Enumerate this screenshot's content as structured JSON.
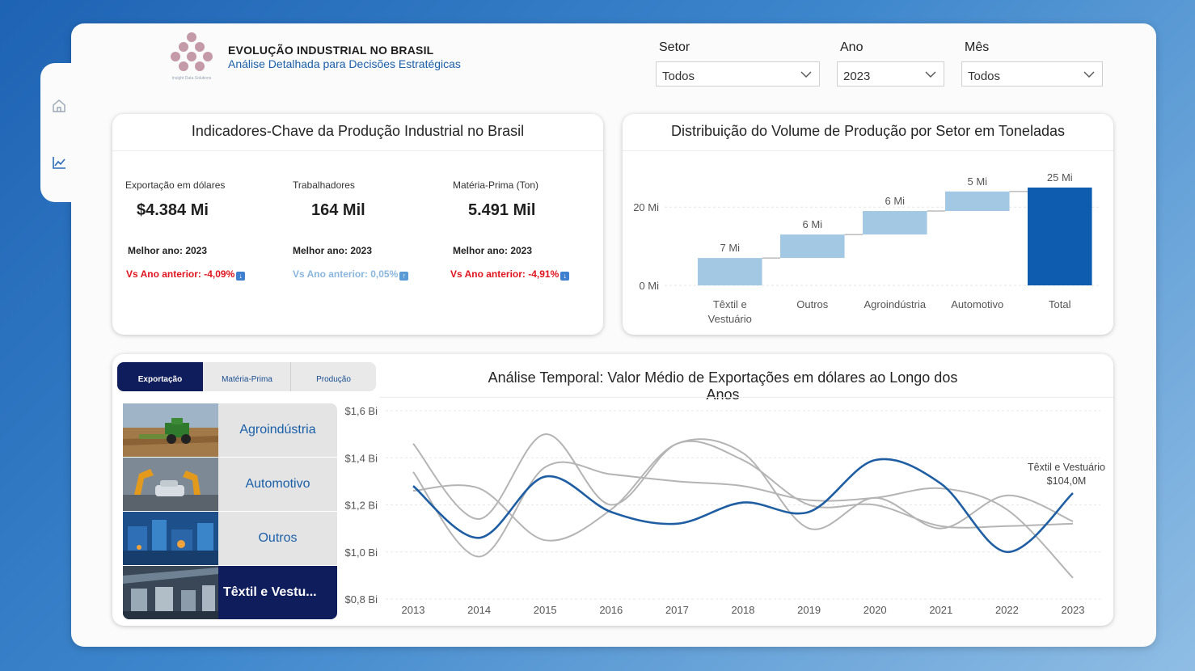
{
  "header": {
    "title": "EVOLUÇÃO INDUSTRIAL NO BRASIL",
    "subtitle": "Análise Detalhada para Decisões Estratégicas",
    "logo_caption": "Insight Data Solutions"
  },
  "sidebar": {
    "icons": [
      "home-icon",
      "line-chart-icon"
    ]
  },
  "filters": {
    "setor": {
      "label": "Setor",
      "value": "Todos"
    },
    "ano": {
      "label": "Ano",
      "value": "2023"
    },
    "mes": {
      "label": "Mês",
      "value": "Todos"
    }
  },
  "kpi_card": {
    "title": "Indicadores-Chave da Produção Industrial no Brasil",
    "items": [
      {
        "label": "Exportação em dólares",
        "value": "$4.384 Mi",
        "best": "Melhor ano: 2023",
        "delta": "Vs  Ano anterior: -4,09%",
        "direction": "down",
        "color": "#e0141e"
      },
      {
        "label": "Trabalhadores",
        "value": "164 Mil",
        "best": "Melhor ano: 2023",
        "delta": "Vs  Ano anterior: 0,05%",
        "direction": "up",
        "color": "#8ab6dd"
      },
      {
        "label": "Matéria-Prima (Ton)",
        "value": "5.491 Mil",
        "best": "Melhor ano: 2023",
        "delta": "Vs  Ano anterior: -4,91%",
        "direction": "down",
        "color": "#e0141e"
      }
    ]
  },
  "tabs": [
    {
      "label": "Exportação",
      "active": true
    },
    {
      "label": "Matéria-Prima",
      "active": false
    },
    {
      "label": "Produção",
      "active": false
    }
  ],
  "sectors": [
    {
      "label": "Agroindústria",
      "selected": false
    },
    {
      "label": "Automotivo",
      "selected": false
    },
    {
      "label": "Outros",
      "selected": false
    },
    {
      "label": "Têxtil e Vestu...",
      "selected": true
    }
  ],
  "chart_data": [
    {
      "type": "bar",
      "subtype": "waterfall",
      "title": "Distribuição do Volume de Produção por Setor em Toneladas",
      "categories": [
        "Têxtil e Vestuário",
        "Outros",
        "Agroindústria",
        "Automotivo",
        "Total"
      ],
      "values": [
        7,
        6,
        6,
        5,
        25
      ],
      "data_labels": [
        "7 Mi",
        "6 Mi",
        "6 Mi",
        "5 Mi",
        "25 Mi"
      ],
      "y_ticks": [
        "0 Mi",
        "20 Mi"
      ],
      "ylim": [
        0,
        25
      ],
      "colors": {
        "increase": "#a3c8e3",
        "total": "#0d5cb0"
      },
      "grid": true
    },
    {
      "type": "line",
      "title": "Análise Temporal: Valor Médio de Exportações em dólares ao Longo dos Anos",
      "x": [
        2013,
        2014,
        2015,
        2016,
        2017,
        2018,
        2019,
        2020,
        2021,
        2022,
        2023
      ],
      "y_ticks": [
        "$0,8 Bi",
        "$1,0 Bi",
        "$1,2 Bi",
        "$1,4 Bi",
        "$1,6 Bi"
      ],
      "ylim": [
        0.8,
        1.6
      ],
      "grid": true,
      "series": [
        {
          "name": "Têxtil e Vestuário",
          "highlight": true,
          "color": "#1f5ea2",
          "values": [
            1.28,
            1.06,
            1.32,
            1.17,
            1.12,
            1.21,
            1.17,
            1.39,
            1.29,
            1.0,
            1.25
          ]
        },
        {
          "highlight": false,
          "color": "#b4b4b4",
          "values": [
            1.46,
            1.14,
            1.5,
            1.2,
            1.46,
            1.42,
            1.1,
            1.23,
            1.1,
            1.24,
            1.13
          ]
        },
        {
          "highlight": false,
          "color": "#b4b4b4",
          "values": [
            1.34,
            0.98,
            1.36,
            1.33,
            1.3,
            1.28,
            1.22,
            1.23,
            1.27,
            1.18,
            0.89
          ]
        },
        {
          "highlight": false,
          "color": "#b4b4b4",
          "values": [
            1.26,
            1.27,
            1.05,
            1.18,
            1.46,
            1.39,
            1.2,
            1.2,
            1.11,
            1.11,
            1.12
          ]
        }
      ],
      "annotation": {
        "series": "Têxtil e Vestuário",
        "label": "Têxtil e Vestuário",
        "value": "$104,0M"
      }
    }
  ]
}
